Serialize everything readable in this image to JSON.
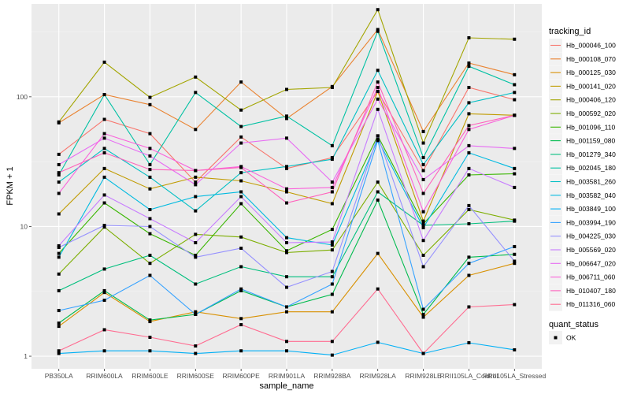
{
  "chart_data": {
    "type": "line",
    "title": "",
    "xlabel": "sample_name",
    "ylabel": "FPKM + 1",
    "yscale": "log10",
    "ylim": [
      0.8,
      520
    ],
    "yticks": [
      1,
      10,
      100
    ],
    "ytick_labels": [
      "1",
      "10",
      "100"
    ],
    "grid": true,
    "legend_position": "right",
    "categories": [
      "PB350LA",
      "RRIM600LA",
      "RRIM600LE",
      "RRIM600SE",
      "RRIM600PE",
      "RRIM901LA",
      "RRIM928BA",
      "RRIM928LA",
      "RRIM928LE",
      "RRII105LA_Control",
      "RRII105LA_Stressed"
    ],
    "legend": {
      "color_title": "tracking_id",
      "shape_title": "quant_status",
      "shape_entries": [
        "OK"
      ]
    },
    "series": [
      {
        "name": "Hb_000046_100",
        "color": "#F8766D",
        "values": [
          36,
          67,
          52,
          22,
          49,
          28,
          34,
          110,
          27,
          118,
          95
        ]
      },
      {
        "name": "Hb_000108_070",
        "color": "#EA8331",
        "values": [
          63,
          104,
          87,
          56,
          130,
          68,
          120,
          330,
          54,
          182,
          148
        ]
      },
      {
        "name": "Hb_000125_030",
        "color": "#D89000",
        "values": [
          1.7,
          3.1,
          1.85,
          2.2,
          1.95,
          2.2,
          2.2,
          6.2,
          2.0,
          4.2,
          5.2
        ]
      },
      {
        "name": "Hb_000141_020",
        "color": "#C09B00",
        "values": [
          12.5,
          28,
          19.5,
          24,
          22.5,
          18.5,
          15,
          110,
          11,
          74,
          72
        ]
      },
      {
        "name": "Hb_000406_120",
        "color": "#A3A500",
        "values": [
          64,
          185,
          99,
          142,
          79,
          114,
          118,
          470,
          44,
          285,
          278
        ]
      },
      {
        "name": "Hb_000592_020",
        "color": "#7CAE00",
        "values": [
          4.3,
          9.9,
          5.2,
          8.7,
          8.3,
          6.3,
          6.6,
          22,
          6.0,
          13.5,
          11.2
        ]
      },
      {
        "name": "Hb_001096_110",
        "color": "#39B600",
        "values": [
          6.2,
          15.2,
          8.8,
          6.0,
          15.0,
          6.5,
          9.5,
          50,
          10.5,
          25,
          25.5
        ]
      },
      {
        "name": "Hb_001159_080",
        "color": "#00BB4E",
        "values": [
          1.8,
          3.2,
          1.9,
          2.1,
          3.2,
          2.4,
          3.0,
          16,
          2.1,
          5.8,
          6.1
        ]
      },
      {
        "name": "Hb_001279_340",
        "color": "#00BF7D",
        "values": [
          3.2,
          4.7,
          6.0,
          3.6,
          4.9,
          4.1,
          4.1,
          18.5,
          10.2,
          10.5,
          11.0
        ]
      },
      {
        "name": "Hb_002045_180",
        "color": "#00C1A3",
        "values": [
          25,
          104,
          30,
          108,
          59,
          71,
          42,
          320,
          34,
          172,
          124
        ]
      },
      {
        "name": "Hb_003581_260",
        "color": "#00BFC4",
        "values": [
          22,
          40,
          24,
          13.2,
          26,
          29,
          33,
          160,
          30,
          90,
          108
        ]
      },
      {
        "name": "Hb_003582_040",
        "color": "#00BAE0",
        "values": [
          5.8,
          24,
          13.5,
          17,
          18.5,
          8.2,
          7.2,
          47,
          9.8,
          37,
          28
        ]
      },
      {
        "name": "Hb_003849_100",
        "color": "#00B0F6",
        "values": [
          1.05,
          1.1,
          1.1,
          1.05,
          1.1,
          1.1,
          1.02,
          1.28,
          1.05,
          1.27,
          1.12
        ]
      },
      {
        "name": "Hb_003994_190",
        "color": "#35A2FF",
        "values": [
          2.25,
          2.7,
          4.2,
          2.1,
          3.3,
          2.4,
          3.6,
          46,
          2.3,
          5.2,
          7.0
        ]
      },
      {
        "name": "Hb_004225_030",
        "color": "#9590FF",
        "values": [
          6.9,
          10.2,
          10.0,
          5.8,
          6.8,
          3.4,
          4.5,
          50,
          4.9,
          14.5,
          5.4
        ]
      },
      {
        "name": "Hb_005569_020",
        "color": "#C77CFF",
        "values": [
          7.1,
          17.5,
          11.5,
          7.5,
          17.0,
          7.5,
          7.6,
          80,
          7.8,
          28,
          20
        ]
      },
      {
        "name": "Hb_006647_020",
        "color": "#E76BF3",
        "values": [
          30,
          48,
          35,
          21,
          44,
          48,
          22,
          96,
          23,
          42,
          40
        ]
      },
      {
        "name": "Hb_006711_060",
        "color": "#FA62DB",
        "values": [
          18,
          52,
          40,
          27,
          29,
          19.5,
          20,
          118,
          13,
          56,
          72
        ]
      },
      {
        "name": "Hb_010407_180",
        "color": "#FF62BC",
        "values": [
          26,
          37,
          27.5,
          27,
          28.5,
          15.2,
          18.5,
          130,
          18,
          60,
          72
        ]
      },
      {
        "name": "Hb_011316_060",
        "color": "#FF6C91",
        "values": [
          1.1,
          1.6,
          1.4,
          1.2,
          1.75,
          1.3,
          1.3,
          3.3,
          1.05,
          2.4,
          2.5
        ]
      }
    ]
  }
}
